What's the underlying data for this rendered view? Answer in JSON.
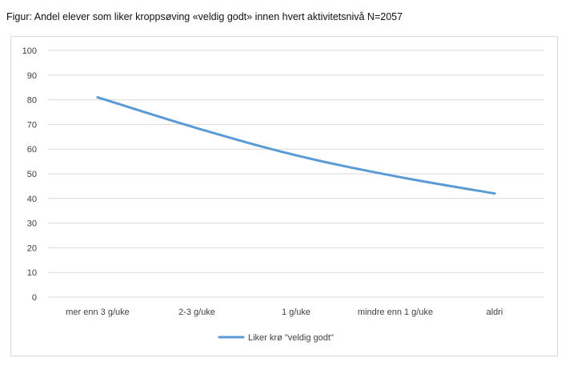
{
  "caption": "Figur: Andel elever som liker kroppsøving «veldig godt» innen hvert aktivitetsnivå N=2057",
  "chart_data": {
    "type": "line",
    "title": "",
    "xlabel": "",
    "ylabel": "",
    "categories": [
      "mer enn 3 g/uke",
      "2-3 g/uke",
      "1 g/uke",
      "mindre enn 1 g/uke",
      "aldri"
    ],
    "series": [
      {
        "name": "Liker krø \"veldig godt\"",
        "values": [
          81,
          68.5,
          57.5,
          49,
          42
        ],
        "color": "#5b9bd5"
      }
    ],
    "ylim": [
      0,
      100
    ],
    "yticks": [
      "0",
      "10",
      "20",
      "30",
      "40",
      "50",
      "60",
      "70",
      "80",
      "90",
      "100"
    ],
    "grid": true,
    "gridColor": "#d9d9d9",
    "legend": "bottom"
  }
}
